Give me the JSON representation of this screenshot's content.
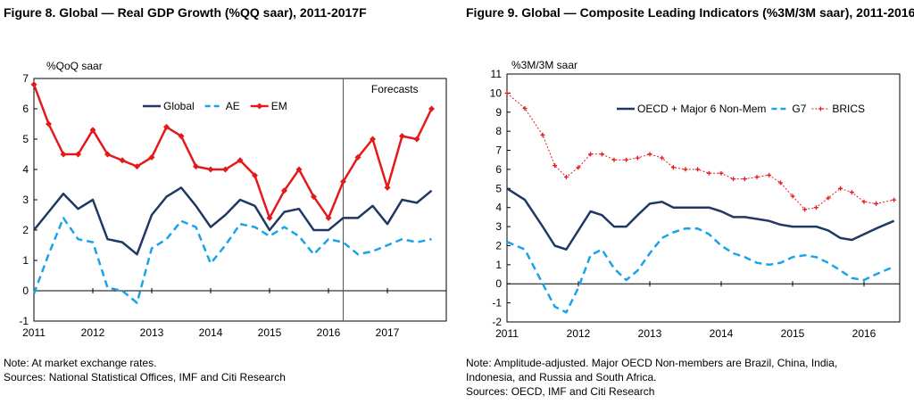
{
  "left": {
    "title": "Figure 8. Global — Real GDP Growth (%QQ saar), 2011-2017F",
    "note": "Note: At market exchange rates.",
    "sources": "Sources: National Statistical Offices, IMF and Citi Research"
  },
  "right": {
    "title": "Figure 9.  Global — Composite Leading Indicators (%3M/3M saar), 2011-2016",
    "note_lines": [
      "Note: Amplitude-adjusted. Major OECD Non-members are Brazil, China, India,",
      "Indonesia, and Russia and South Africa."
    ],
    "sources": "Sources: OECD, IMF and Citi Research"
  },
  "chart_data": [
    {
      "type": "line",
      "title": "Figure 8. Global — Real GDP Growth (%QQ saar), 2011-2017F",
      "ylabel": "%QoQ saar",
      "xlabel": "",
      "ylim": [
        -1,
        7
      ],
      "yticks": [
        -1,
        0,
        1,
        2,
        3,
        4,
        5,
        6,
        7
      ],
      "xlim": [
        2011,
        2018
      ],
      "xticks": [
        2011,
        2012,
        2013,
        2014,
        2015,
        2016,
        2017
      ],
      "grid": false,
      "legend": "top-center",
      "annotations": [
        {
          "text": "Forecasts",
          "x": 2016.25,
          "type": "vertical-line"
        }
      ],
      "x": [
        2011.0,
        2011.25,
        2011.5,
        2011.75,
        2012.0,
        2012.25,
        2012.5,
        2012.75,
        2013.0,
        2013.25,
        2013.5,
        2013.75,
        2014.0,
        2014.25,
        2014.5,
        2014.75,
        2015.0,
        2015.25,
        2015.5,
        2015.75,
        2016.0,
        2016.25,
        2016.5,
        2016.75,
        2017.0,
        2017.25,
        2017.5,
        2017.75
      ],
      "series": [
        {
          "name": "Global",
          "color": "#1f3864",
          "style": "solid",
          "values": [
            2.0,
            2.6,
            3.2,
            2.7,
            3.0,
            1.7,
            1.6,
            1.2,
            2.5,
            3.1,
            3.4,
            2.8,
            2.1,
            2.5,
            3.0,
            2.8,
            2.0,
            2.6,
            2.7,
            2.0,
            2.0,
            2.4,
            2.4,
            2.8,
            2.2,
            3.0,
            2.9,
            3.3
          ]
        },
        {
          "name": "AE",
          "color": "#1aa3e8",
          "style": "dashed",
          "values": [
            -0.1,
            1.2,
            2.4,
            1.7,
            1.6,
            0.1,
            0.0,
            -0.4,
            1.4,
            1.7,
            2.3,
            2.1,
            0.9,
            1.5,
            2.2,
            2.1,
            1.8,
            2.1,
            1.8,
            1.2,
            1.7,
            1.6,
            1.2,
            1.3,
            1.5,
            1.7,
            1.6,
            1.7
          ]
        },
        {
          "name": "EM",
          "color": "#e31a1c",
          "style": "solid-markers",
          "values": [
            6.8,
            5.5,
            4.5,
            4.5,
            5.3,
            4.5,
            4.3,
            4.1,
            4.4,
            5.4,
            5.1,
            4.1,
            4.0,
            4.0,
            4.3,
            3.8,
            2.4,
            3.3,
            4.0,
            3.1,
            2.4,
            3.6,
            4.4,
            5.0,
            3.4,
            5.1,
            5.0,
            6.0
          ]
        }
      ]
    },
    {
      "type": "line",
      "title": "Figure 9.  Global — Composite Leading Indicators (%3M/3M saar), 2011-2016",
      "ylabel": "%3M/3M saar",
      "xlabel": "",
      "ylim": [
        -2,
        11
      ],
      "yticks": [
        -2,
        -1,
        0,
        1,
        2,
        3,
        4,
        5,
        6,
        7,
        8,
        9,
        10,
        11
      ],
      "xlim": [
        2011,
        2016.5
      ],
      "xticks": [
        2011,
        2012,
        2013,
        2014,
        2015,
        2016
      ],
      "grid": false,
      "legend": "top-right",
      "x": [
        2011.0,
        2011.25,
        2011.5,
        2011.67,
        2011.83,
        2012.0,
        2012.17,
        2012.33,
        2012.5,
        2012.67,
        2012.83,
        2013.0,
        2013.17,
        2013.33,
        2013.5,
        2013.67,
        2013.83,
        2014.0,
        2014.17,
        2014.33,
        2014.5,
        2014.67,
        2014.83,
        2015.0,
        2015.17,
        2015.33,
        2015.5,
        2015.67,
        2015.83,
        2016.0,
        2016.17,
        2016.42
      ],
      "series": [
        {
          "name": "OECD + Major 6 Non-Mem",
          "color": "#1f3864",
          "style": "solid",
          "values": [
            5.0,
            4.4,
            3.0,
            2.0,
            1.8,
            2.8,
            3.8,
            3.6,
            3.0,
            3.0,
            3.6,
            4.2,
            4.3,
            4.0,
            4.0,
            4.0,
            4.0,
            3.8,
            3.5,
            3.5,
            3.4,
            3.3,
            3.1,
            3.0,
            3.0,
            3.0,
            2.8,
            2.4,
            2.3,
            2.6,
            2.9,
            3.3
          ]
        },
        {
          "name": "G7",
          "color": "#1aa3e8",
          "style": "dashed",
          "values": [
            2.2,
            1.8,
            0.0,
            -1.2,
            -1.5,
            -0.2,
            1.5,
            1.8,
            0.8,
            0.2,
            0.7,
            1.6,
            2.4,
            2.7,
            2.9,
            2.9,
            2.6,
            2.0,
            1.6,
            1.4,
            1.1,
            1.0,
            1.1,
            1.4,
            1.5,
            1.4,
            1.1,
            0.7,
            0.3,
            0.2,
            0.5,
            0.9
          ]
        },
        {
          "name": "BRICS",
          "color": "#e31a1c",
          "style": "dotted-markers",
          "values": [
            10.0,
            9.2,
            7.8,
            6.2,
            5.6,
            6.1,
            6.8,
            6.8,
            6.5,
            6.5,
            6.6,
            6.8,
            6.6,
            6.1,
            6.0,
            6.0,
            5.8,
            5.8,
            5.5,
            5.5,
            5.6,
            5.7,
            5.3,
            4.6,
            3.9,
            4.0,
            4.5,
            5.0,
            4.8,
            4.3,
            4.2,
            4.4
          ]
        }
      ]
    }
  ]
}
